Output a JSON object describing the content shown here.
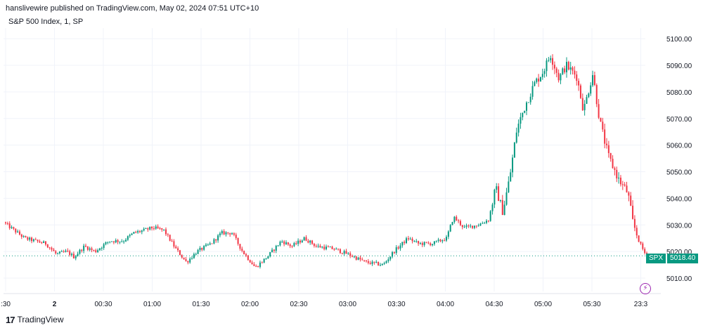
{
  "header": {
    "published": "hanslivewire published on TradingView.com, May 02, 2024 07:51 UTC+10",
    "symbol_line": "S&P 500 Index, 1, SP"
  },
  "footer": {
    "brand": "TradingView",
    "logo_glyph": "17"
  },
  "price_badge": {
    "symbol": "SPX",
    "value": "5018.40"
  },
  "colors": {
    "up": "#089981",
    "down": "#f23645",
    "grid": "#f0f3fa",
    "text": "#131722"
  },
  "chart_data": {
    "type": "candlestick",
    "title": "S&P 500 Index, 1, SP",
    "ylim": [
      5005,
      5104
    ],
    "y_ticks": [
      "5010.00",
      "5020.00",
      "5030.00",
      "5040.00",
      "5050.00",
      "5060.00",
      "5070.00",
      "5080.00",
      "5090.00",
      "5100.00"
    ],
    "y_tick_values": [
      5010,
      5020,
      5030,
      5040,
      5050,
      5060,
      5070,
      5080,
      5090,
      5100
    ],
    "x_ticks": [
      ":30",
      "2",
      "00:30",
      "01:00",
      "01:30",
      "02:00",
      "02:30",
      "03:00",
      "03:30",
      "04:00",
      "04:30",
      "05:00",
      "05:30",
      "23:3"
    ],
    "last_price": 5018.4,
    "grid": true,
    "series_path": [
      {
        "t": 0,
        "p": 5031
      },
      {
        "t": 15,
        "p": 5028
      },
      {
        "t": 30,
        "p": 5025
      },
      {
        "t": 45,
        "p": 5024
      },
      {
        "t": 60,
        "p": 5023
      },
      {
        "t": 75,
        "p": 5019
      },
      {
        "t": 90,
        "p": 5020
      },
      {
        "t": 100,
        "p": 5018
      },
      {
        "t": 115,
        "p": 5022
      },
      {
        "t": 130,
        "p": 5020
      },
      {
        "t": 150,
        "p": 5024
      },
      {
        "t": 170,
        "p": 5024
      },
      {
        "t": 185,
        "p": 5027
      },
      {
        "t": 200,
        "p": 5028
      },
      {
        "t": 212,
        "p": 5029
      },
      {
        "t": 228,
        "p": 5028
      },
      {
        "t": 245,
        "p": 5021
      },
      {
        "t": 260,
        "p": 5016
      },
      {
        "t": 275,
        "p": 5020
      },
      {
        "t": 295,
        "p": 5023
      },
      {
        "t": 310,
        "p": 5027
      },
      {
        "t": 325,
        "p": 5027
      },
      {
        "t": 340,
        "p": 5020
      },
      {
        "t": 358,
        "p": 5014
      },
      {
        "t": 375,
        "p": 5018
      },
      {
        "t": 395,
        "p": 5024
      },
      {
        "t": 410,
        "p": 5022
      },
      {
        "t": 428,
        "p": 5025
      },
      {
        "t": 445,
        "p": 5022
      },
      {
        "t": 470,
        "p": 5021
      },
      {
        "t": 490,
        "p": 5019
      },
      {
        "t": 515,
        "p": 5016
      },
      {
        "t": 540,
        "p": 5015
      },
      {
        "t": 555,
        "p": 5020
      },
      {
        "t": 575,
        "p": 5025
      },
      {
        "t": 590,
        "p": 5023
      },
      {
        "t": 610,
        "p": 5023
      },
      {
        "t": 630,
        "p": 5025
      },
      {
        "t": 640,
        "p": 5033
      },
      {
        "t": 655,
        "p": 5029
      },
      {
        "t": 675,
        "p": 5030
      },
      {
        "t": 690,
        "p": 5032
      },
      {
        "t": 700,
        "p": 5044
      },
      {
        "t": 710,
        "p": 5035
      },
      {
        "t": 720,
        "p": 5048
      },
      {
        "t": 730,
        "p": 5066
      },
      {
        "t": 742,
        "p": 5075
      },
      {
        "t": 755,
        "p": 5083
      },
      {
        "t": 768,
        "p": 5088
      },
      {
        "t": 778,
        "p": 5094
      },
      {
        "t": 790,
        "p": 5085
      },
      {
        "t": 800,
        "p": 5090
      },
      {
        "t": 815,
        "p": 5086
      },
      {
        "t": 825,
        "p": 5073
      },
      {
        "t": 838,
        "p": 5087
      },
      {
        "t": 848,
        "p": 5069
      },
      {
        "t": 860,
        "p": 5056
      },
      {
        "t": 875,
        "p": 5047
      },
      {
        "t": 888,
        "p": 5042
      },
      {
        "t": 895,
        "p": 5031
      },
      {
        "t": 905,
        "p": 5023
      },
      {
        "t": 915,
        "p": 5018
      }
    ]
  }
}
